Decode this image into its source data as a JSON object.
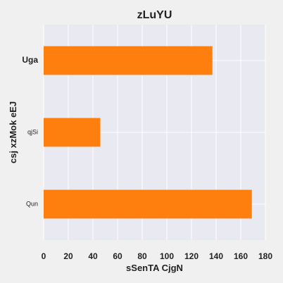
{
  "chart_data": {
    "type": "bar",
    "orientation": "horizontal",
    "title": "zLuYU",
    "xlabel": "sSenTA CjgN",
    "ylabel": "csj xzMok eEJ",
    "categories": [
      "Uga",
      "qjSi",
      "Qun"
    ],
    "values": [
      137,
      46,
      169
    ],
    "xlim": [
      0,
      180
    ],
    "xticks": [
      0,
      20,
      40,
      60,
      80,
      100,
      120,
      140,
      160,
      180
    ],
    "grid": true,
    "bar_color": "#ff7f0e",
    "plot_background": "#e9e9f2",
    "page_background": "#f0f0f0"
  }
}
